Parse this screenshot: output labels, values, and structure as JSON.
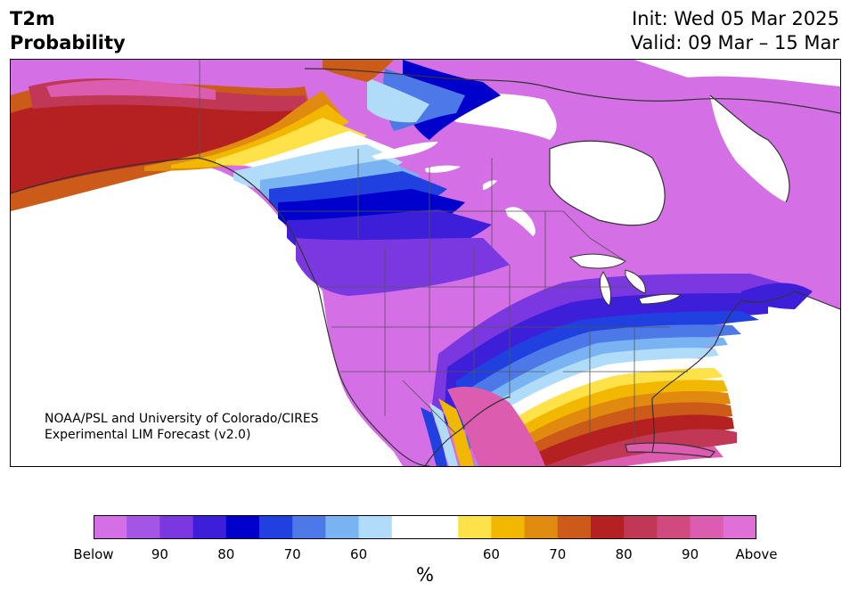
{
  "header": {
    "title_line1": "T2m",
    "title_line2": "Probability",
    "init": "Init: Wed 05 Mar 2025",
    "valid": "Valid: 09 Mar – 15 Mar"
  },
  "map": {
    "credit_line1": "NOAA/PSL and University of Colorado/CIRES",
    "credit_line2": "Experimental LIM Forecast (v2.0)"
  },
  "legend": {
    "units": "%",
    "bins": [
      "#d46fe6",
      "#a455e6",
      "#7b38e0",
      "#3d1fd9",
      "#0000cc",
      "#2040e0",
      "#4c78e8",
      "#7ab3f2",
      "#b0dcfa",
      "#ffffff",
      "#ffffff",
      "#ffe14a",
      "#f2b800",
      "#e08a10",
      "#cc5a18",
      "#b52020",
      "#c03855",
      "#d04a80",
      "#dc5cb0",
      "#e070d8"
    ],
    "tick_labels": [
      "Below",
      "90",
      "80",
      "70",
      "60",
      "60",
      "70",
      "80",
      "90",
      "Above"
    ]
  },
  "colors": {
    "below_high": "#d46fe6",
    "below_mid": "#7b38e0",
    "below_low": "#0000cc",
    "near_normal": "#ffffff",
    "above_low": "#ffe14a",
    "above_mid": "#cc5a18",
    "above_high": "#b52020",
    "above_top": "#dc5cb0"
  }
}
